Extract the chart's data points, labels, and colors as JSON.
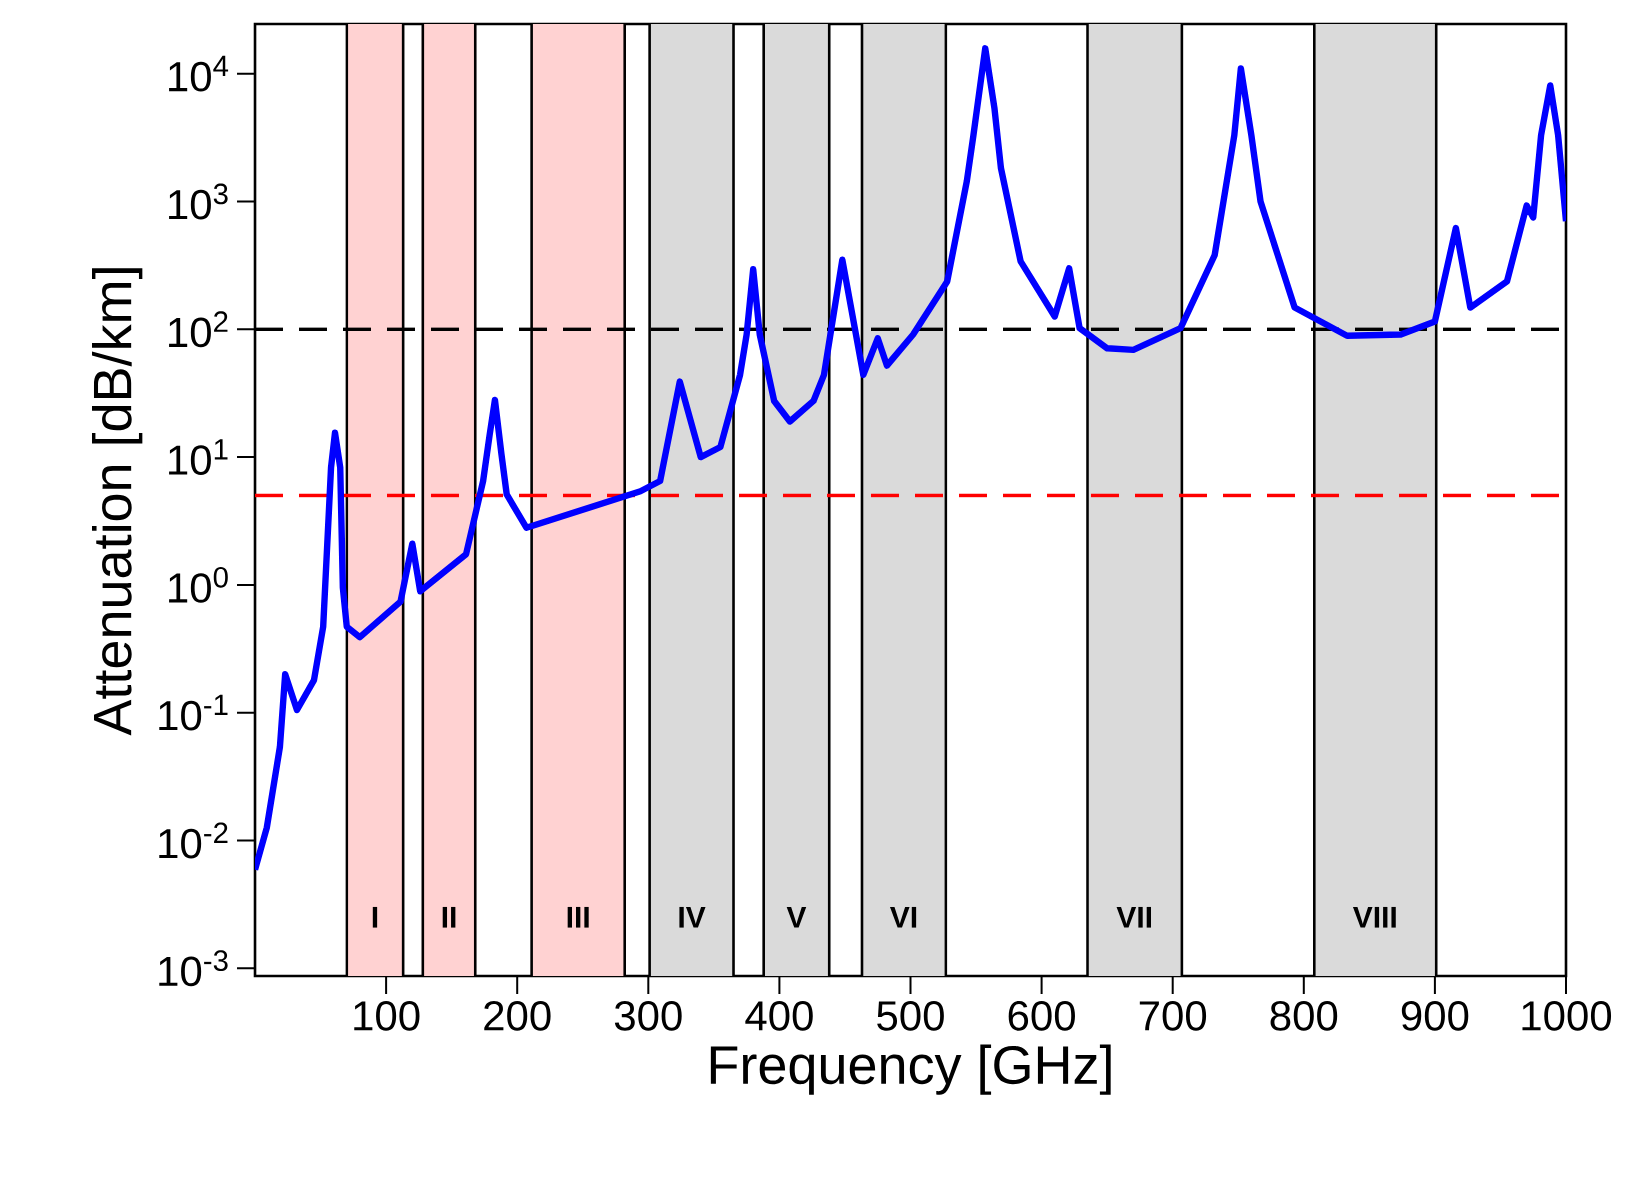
{
  "chart_data": {
    "type": "line",
    "xlabel": "Frequency [GHz]",
    "ylabel": "Attenuation [dB/km]",
    "log": "y",
    "xlim": [
      0,
      1000
    ],
    "ylim": [
      0.00087,
      24500
    ],
    "xticks": [
      100,
      200,
      300,
      400,
      500,
      600,
      700,
      800,
      900,
      1000
    ],
    "yticks": [
      {
        "value": 0.001,
        "label": "10$^{-3}$"
      },
      {
        "value": 0.01,
        "label": "10$^{-2}$"
      },
      {
        "value": 0.1,
        "label": "10$^{-1}$"
      },
      {
        "value": 1,
        "label": "10$^{0}$"
      },
      {
        "value": 10,
        "label": "10$^{1}$"
      },
      {
        "value": 100,
        "label": "10$^{2}$"
      },
      {
        "value": 1000,
        "label": "10$^{3}$"
      },
      {
        "value": 10000,
        "label": "10$^{4}$"
      }
    ],
    "x": [
      0,
      9,
      19,
      23,
      32,
      45,
      52,
      58,
      61,
      65,
      67,
      70,
      80,
      111,
      120,
      126,
      161,
      174,
      179,
      183,
      188,
      192,
      207,
      294,
      309,
      324,
      340,
      355,
      370,
      375,
      380,
      385,
      396,
      408,
      426,
      434,
      448,
      464,
      475,
      482,
      502,
      528,
      543,
      548,
      557,
      564,
      569,
      584,
      610,
      621,
      629,
      650,
      670,
      706,
      732,
      747,
      752,
      760,
      767,
      793,
      833,
      874,
      900,
      916,
      927,
      955,
      970,
      975,
      981,
      988,
      994,
      1000
    ],
    "series": [
      {
        "color": "#0000ff",
        "values": [
          0.0059,
          0.0126,
          0.054,
          0.2,
          0.105,
          0.18,
          0.47,
          8.3,
          15.5,
          8.3,
          0.95,
          0.47,
          0.39,
          0.74,
          2.1,
          0.89,
          1.74,
          6.5,
          15,
          28,
          10.5,
          5.1,
          2.8,
          5.4,
          6.5,
          39,
          10,
          12,
          44,
          91,
          295,
          91,
          27.5,
          19,
          27.5,
          44,
          350,
          44,
          85,
          52,
          91,
          237,
          1450,
          3300,
          15800,
          5400,
          1820,
          340,
          126,
          300,
          102,
          71,
          69,
          102,
          380,
          3300,
          11000,
          3300,
          1000,
          148,
          89,
          91,
          115,
          620,
          148,
          237,
          930,
          750,
          3300,
          8100,
          3300,
          700
        ]
      }
    ],
    "ref_lines": [
      {
        "axis": "y",
        "value": 100,
        "color": "#000000",
        "line_style": "dashed"
      },
      {
        "axis": "y",
        "value": 5,
        "color": "#ff0000",
        "line_style": "dashed"
      }
    ],
    "bands": [
      {
        "axis": "x",
        "from": 70,
        "to": 113,
        "label": "I",
        "color": "#ffd2d2"
      },
      {
        "axis": "x",
        "from": 128,
        "to": 168,
        "label": "II",
        "color": "#ffd2d2"
      },
      {
        "axis": "x",
        "from": 211,
        "to": 282,
        "label": "III",
        "color": "#ffd2d2"
      },
      {
        "axis": "x",
        "from": 301,
        "to": 365,
        "label": "IV",
        "color": "#dadada"
      },
      {
        "axis": "x",
        "from": 388,
        "to": 438,
        "label": "V",
        "color": "#dadada"
      },
      {
        "axis": "x",
        "from": 463,
        "to": 527,
        "label": "VI",
        "color": "#dadada"
      },
      {
        "axis": "x",
        "from": 635,
        "to": 707,
        "label": "VII",
        "color": "#dadada"
      },
      {
        "axis": "x",
        "from": 808,
        "to": 901,
        "label": "VIII",
        "color": "#dadada"
      }
    ]
  }
}
